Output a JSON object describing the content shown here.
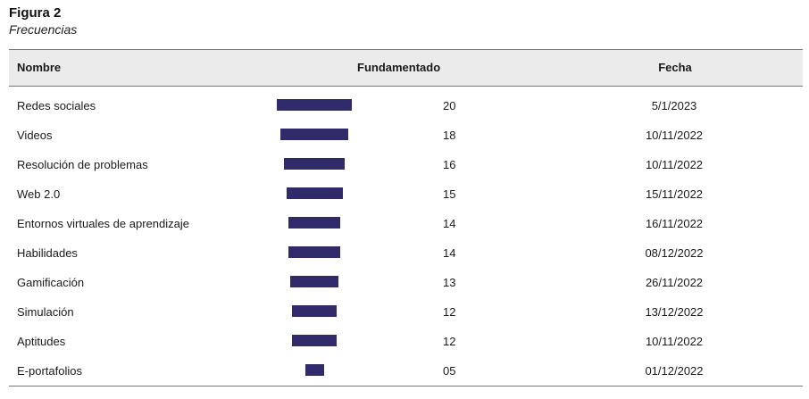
{
  "figure": {
    "title": "Figura 2",
    "subtitle": "Frecuencias"
  },
  "table": {
    "headers": {
      "name": "Nombre",
      "fundamentado": "Fundamentado",
      "date": "Fecha"
    },
    "rows": [
      {
        "name": "Redes sociales",
        "value": "20",
        "date": "5/1/2023"
      },
      {
        "name": "Videos",
        "value": "18",
        "date": "10/11/2022"
      },
      {
        "name": "Resolución de problemas",
        "value": "16",
        "date": "10/11/2022"
      },
      {
        "name": "Web 2.0",
        "value": "15",
        "date": "15/11/2022"
      },
      {
        "name": "Entornos virtuales de aprendizaje",
        "value": "14",
        "date": "16/11/2022"
      },
      {
        "name": "Habilidades",
        "value": "14",
        "date": "08/12/2022"
      },
      {
        "name": "Gamificación",
        "value": "13",
        "date": "26/11/2022"
      },
      {
        "name": "Simulación",
        "value": "12",
        "date": "13/12/2022"
      },
      {
        "name": "Aptitudes",
        "value": "12",
        "date": "10/11/2022"
      },
      {
        "name": "E-portafolios",
        "value": "05",
        "date": "01/12/2022"
      }
    ]
  },
  "colors": {
    "bar": "#302a6b",
    "header_background": "#ebebeb"
  }
}
